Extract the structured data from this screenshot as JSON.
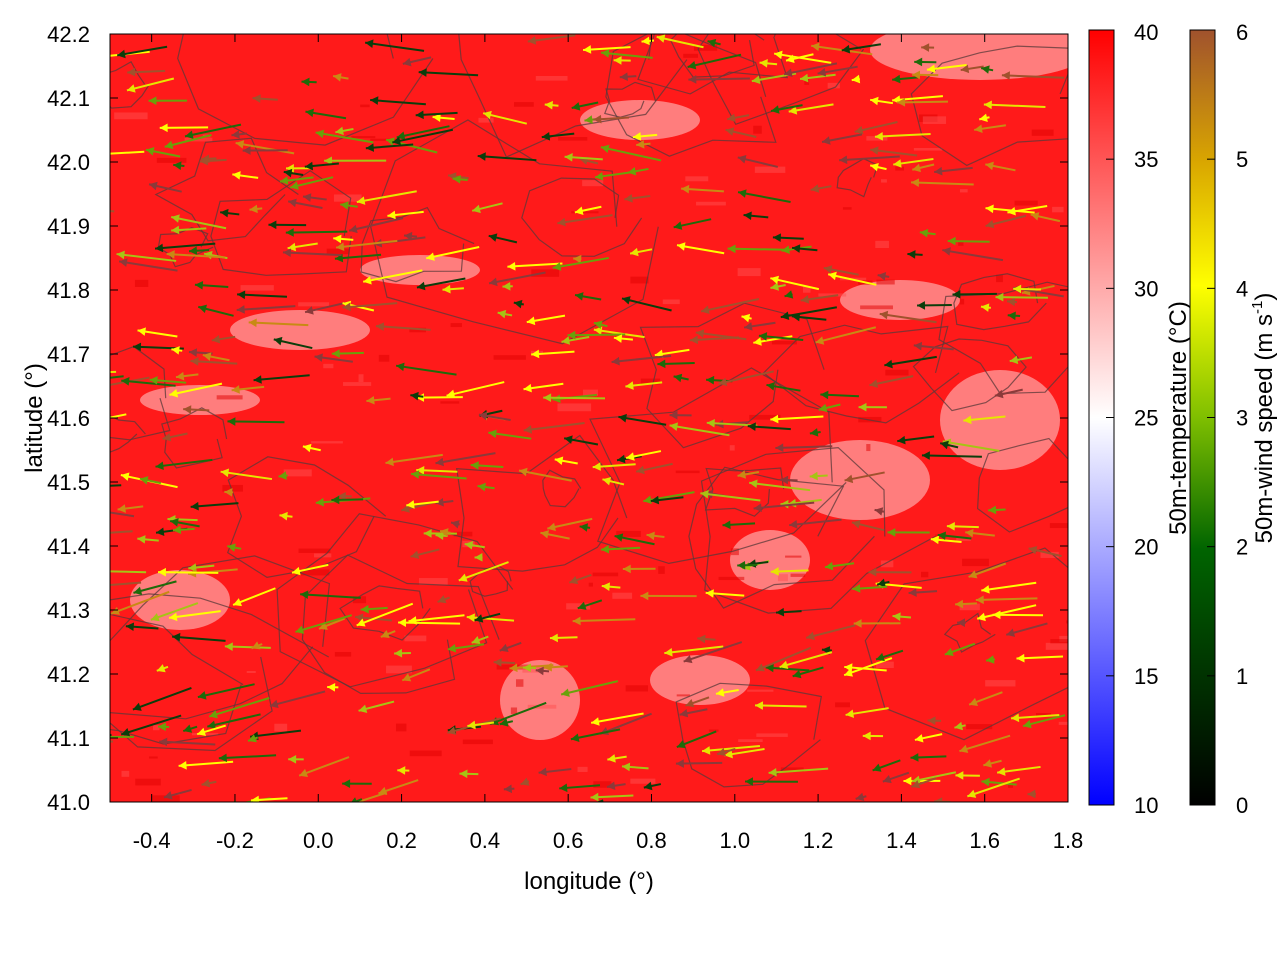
{
  "chart_data": {
    "type": "heatmap",
    "xlabel": "longitude (°)",
    "ylabel": "latitude (°)",
    "xlim": [
      -0.5,
      1.8
    ],
    "ylim": [
      41.0,
      42.2
    ],
    "x_ticks": [
      "-0.4",
      "-0.2",
      "0.0",
      "0.2",
      "0.4",
      "0.6",
      "0.8",
      "1.0",
      "1.2",
      "1.4",
      "1.6",
      "1.8"
    ],
    "y_ticks": [
      "41.0",
      "41.1",
      "41.2",
      "41.3",
      "41.4",
      "41.5",
      "41.6",
      "41.7",
      "41.8",
      "41.9",
      "42.0",
      "42.1",
      "42.2"
    ],
    "overlays": [
      "wind vectors colored by speed",
      "contour lines"
    ],
    "colorbars": [
      {
        "name": "temperature",
        "label": "50m-temperature (°C)",
        "range": [
          10,
          40
        ],
        "ticks": [
          "10",
          "15",
          "20",
          "25",
          "30",
          "35",
          "40"
        ],
        "colors": [
          "#0000ff",
          "#ffffff",
          "#ff0000"
        ]
      },
      {
        "name": "wind",
        "label_main": "50m-wind speed (m s",
        "label_sup": "-1",
        "label_end": ")",
        "range": [
          0,
          6
        ],
        "ticks": [
          "0",
          "1",
          "2",
          "3",
          "4",
          "5",
          "6"
        ],
        "colors": [
          "#000000",
          "#006400",
          "#7fbf00",
          "#ffff00",
          "#d9a600",
          "#a0522d"
        ]
      }
    ],
    "temperature_field_description_range": [
      27,
      40
    ],
    "wind_direction": "predominantly westward (easterly flow)"
  }
}
